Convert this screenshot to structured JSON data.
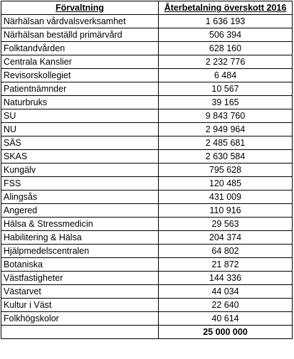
{
  "table": {
    "headers": [
      "Förvaltning",
      "Återbetalning överskott 2016"
    ],
    "rows": [
      {
        "name": "Närhälsan vårdvalsverksamhet",
        "value": "1 636 193"
      },
      {
        "name": "Närhälsan beställd primärvård",
        "value": "506 394"
      },
      {
        "name": "Folktandvården",
        "value": "628 160"
      },
      {
        "name": "Centrala Kanslier",
        "value": "2 232 776"
      },
      {
        "name": "Revisorskollegiet",
        "value": "6 484"
      },
      {
        "name": "Patientnämnder",
        "value": "10 567"
      },
      {
        "name": "Naturbruks",
        "value": "39 165"
      },
      {
        "name": "SU",
        "value": "9 843 760"
      },
      {
        "name": "NU",
        "value": "2 949 964"
      },
      {
        "name": "SÄS",
        "value": "2 485 681"
      },
      {
        "name": "SKAS",
        "value": "2 630 584"
      },
      {
        "name": "Kungälv",
        "value": "795 628"
      },
      {
        "name": "FSS",
        "value": "120 485"
      },
      {
        "name": "Alingsås",
        "value": "431 009"
      },
      {
        "name": "Angered",
        "value": "110 916"
      },
      {
        "name": "Hälsa & Stressmedicin",
        "value": "29 563"
      },
      {
        "name": "Habilitering & Hälsa",
        "value": "204 374"
      },
      {
        "name": "Hjälpmedelscentralen",
        "value": "64 802"
      },
      {
        "name": "Botaniska",
        "value": "21 872"
      },
      {
        "name": "Västfastigheter",
        "value": "144 336"
      },
      {
        "name": "Västarvet",
        "value": "44 034"
      },
      {
        "name": "Kultur i Väst",
        "value": "22 640"
      },
      {
        "name": "Folkhögskolor",
        "value": "40 614"
      }
    ],
    "total": {
      "name": "",
      "value": "25 000 000"
    }
  }
}
